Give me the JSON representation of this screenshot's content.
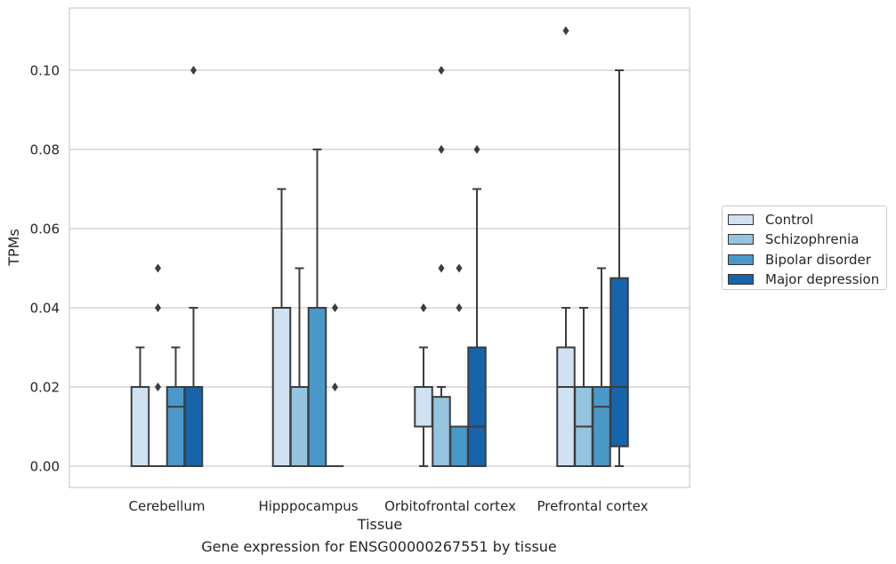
{
  "chart_data": {
    "type": "box",
    "title": "",
    "xlabel": "Tissue",
    "ylabel": "TPMs",
    "caption": "Gene expression for ENSG00000267551 by tissue",
    "ylim": [
      -0.005,
      0.1165
    ],
    "yticks": [
      "0.00",
      "0.02",
      "0.04",
      "0.06",
      "0.08",
      "0.10"
    ],
    "ytick_values": [
      0,
      0.02,
      0.04,
      0.06,
      0.08,
      0.1
    ],
    "grid": "horizontal",
    "legend_position": "right",
    "categories": [
      "Cerebellum",
      "Hipppocampus",
      "Orbitofrontal cortex",
      "Prefrontal cortex"
    ],
    "series": [
      {
        "name": "Control",
        "color": "#d0e1f2",
        "boxes": [
          {
            "whisker_low": 0,
            "q1": 0,
            "median": 0,
            "q3": 0.02,
            "whisker_high": 0.03,
            "outliers": []
          },
          {
            "whisker_low": 0,
            "q1": 0,
            "median": 0,
            "q3": 0.04,
            "whisker_high": 0.07,
            "outliers": []
          },
          {
            "whisker_low": 0,
            "q1": 0.01,
            "median": 0.02,
            "q3": 0.02,
            "whisker_high": 0.03,
            "outliers": [
              0.04
            ]
          },
          {
            "whisker_low": 0,
            "q1": 0,
            "median": 0.02,
            "q3": 0.03,
            "whisker_high": 0.04,
            "outliers": [
              0.11
            ]
          }
        ]
      },
      {
        "name": "Schizophrenia",
        "color": "#94c4df",
        "boxes": [
          {
            "whisker_low": 0,
            "q1": 0,
            "median": 0,
            "q3": 0,
            "whisker_high": 0,
            "outliers": [
              0.02,
              0.04,
              0.05
            ]
          },
          {
            "whisker_low": 0,
            "q1": 0,
            "median": 0,
            "q3": 0.02,
            "whisker_high": 0.05,
            "outliers": []
          },
          {
            "whisker_low": 0,
            "q1": 0,
            "median": 0,
            "q3": 0.0175,
            "whisker_high": 0.02,
            "outliers": [
              0.05,
              0.08,
              0.1
            ]
          },
          {
            "whisker_low": 0,
            "q1": 0,
            "median": 0.01,
            "q3": 0.02,
            "whisker_high": 0.04,
            "outliers": []
          }
        ]
      },
      {
        "name": "Bipolar disorder",
        "color": "#4a98c9",
        "boxes": [
          {
            "whisker_low": 0,
            "q1": 0,
            "median": 0.015,
            "q3": 0.02,
            "whisker_high": 0.03,
            "outliers": []
          },
          {
            "whisker_low": 0,
            "q1": 0,
            "median": 0,
            "q3": 0.04,
            "whisker_high": 0.08,
            "outliers": []
          },
          {
            "whisker_low": 0,
            "q1": 0,
            "median": 0,
            "q3": 0.01,
            "whisker_high": 0.01,
            "outliers": [
              0.04,
              0.05
            ]
          },
          {
            "whisker_low": 0,
            "q1": 0,
            "median": 0.015,
            "q3": 0.02,
            "whisker_high": 0.05,
            "outliers": []
          }
        ]
      },
      {
        "name": "Major depression",
        "color": "#1764ab",
        "boxes": [
          {
            "whisker_low": 0,
            "q1": 0,
            "median": 0,
            "q3": 0.02,
            "whisker_high": 0.04,
            "outliers": [
              0.1
            ]
          },
          {
            "whisker_low": 0,
            "q1": 0,
            "median": 0,
            "q3": 0,
            "whisker_high": 0,
            "outliers": [
              0.02,
              0.04
            ]
          },
          {
            "whisker_low": 0,
            "q1": 0,
            "median": 0.01,
            "q3": 0.03,
            "whisker_high": 0.07,
            "outliers": [
              0.08
            ]
          },
          {
            "whisker_low": 0,
            "q1": 0.005,
            "median": 0.02,
            "q3": 0.0475,
            "whisker_high": 0.1,
            "outliers": []
          }
        ]
      }
    ]
  },
  "outlier_extra": {
    "note_groups": "extra outliers placed per box above",
    "schizo_cerebellum_extra": [
      0.02
    ],
    "bipolar_hippo_extra": []
  }
}
